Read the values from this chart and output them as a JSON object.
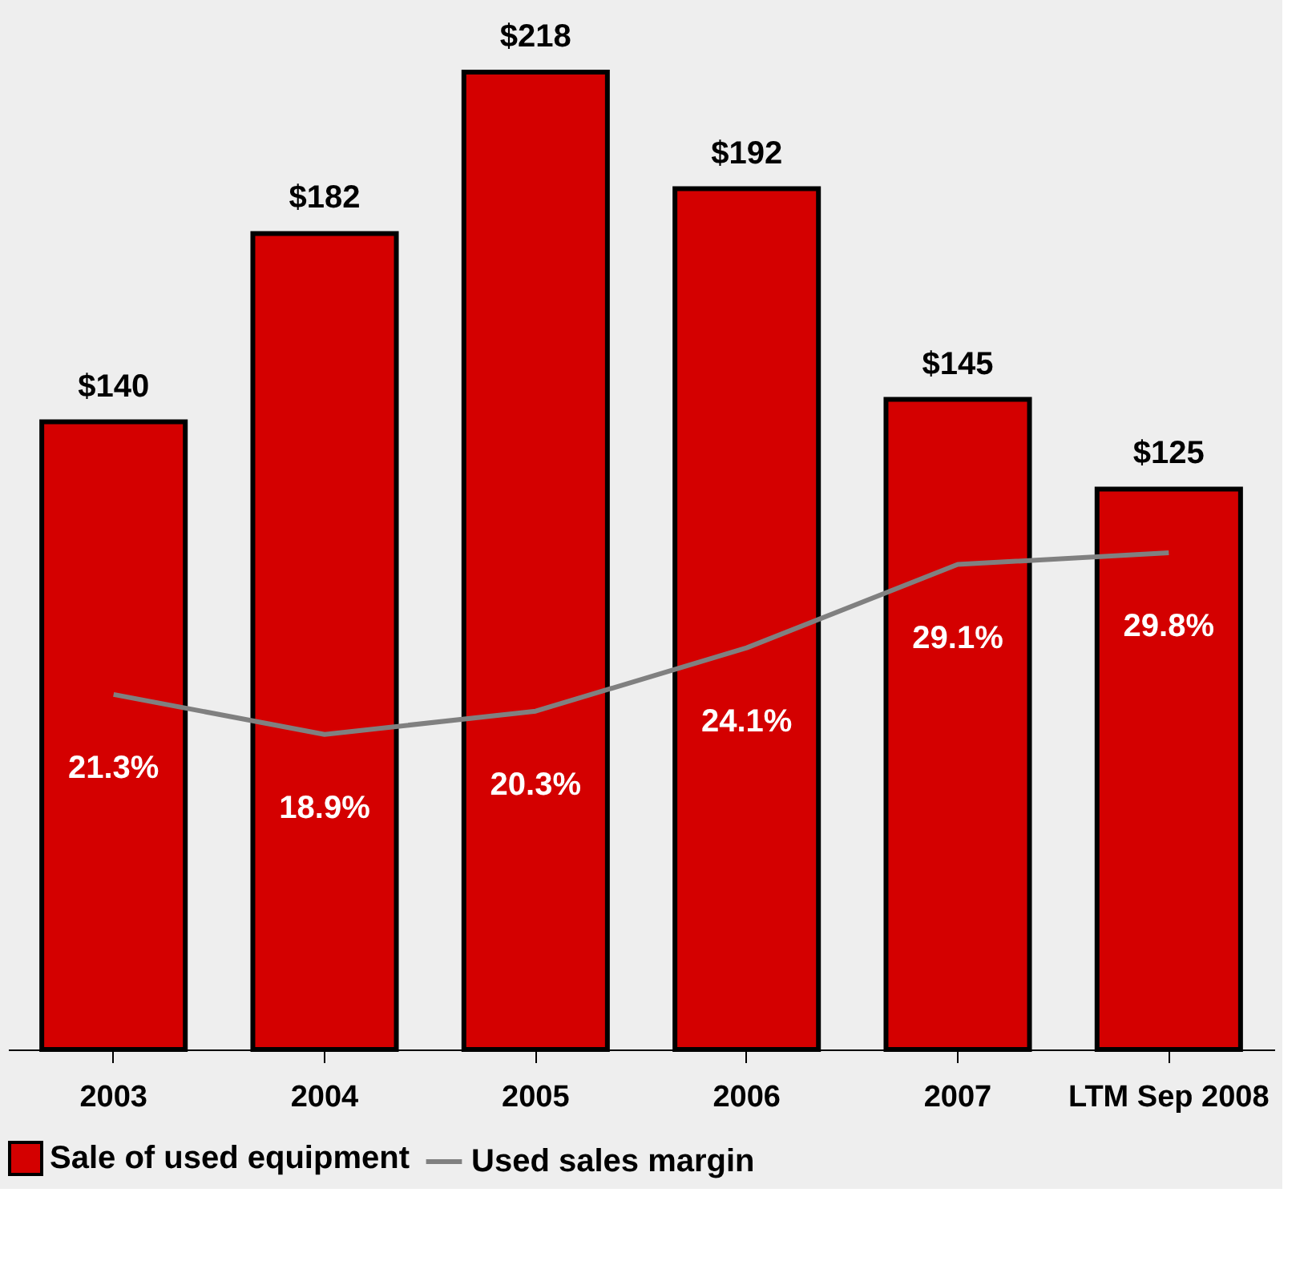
{
  "chart_data": {
    "type": "bar",
    "categories": [
      "2003",
      "2004",
      "2005",
      "2006",
      "2007",
      "LTM Sep 2008"
    ],
    "series": [
      {
        "name": "Sale of used equipment",
        "color": "#d40000",
        "values": [
          140,
          182,
          218,
          192,
          145,
          125
        ],
        "value_labels": [
          "$140",
          "$182",
          "$218",
          "$192",
          "$145",
          "$125"
        ]
      },
      {
        "name": "Used sales margin",
        "type": "line",
        "axis": "y2",
        "color": "#808080",
        "values": [
          21.3,
          18.9,
          20.3,
          24.1,
          29.1,
          29.8
        ],
        "value_labels": [
          "21.3%",
          "18.9%",
          "20.3%",
          "24.1%",
          "29.1%",
          "29.8%"
        ]
      }
    ],
    "tick_labels": "x",
    "grid": false,
    "legend": "bottom",
    "marker": "none",
    "line_style": "solid"
  }
}
